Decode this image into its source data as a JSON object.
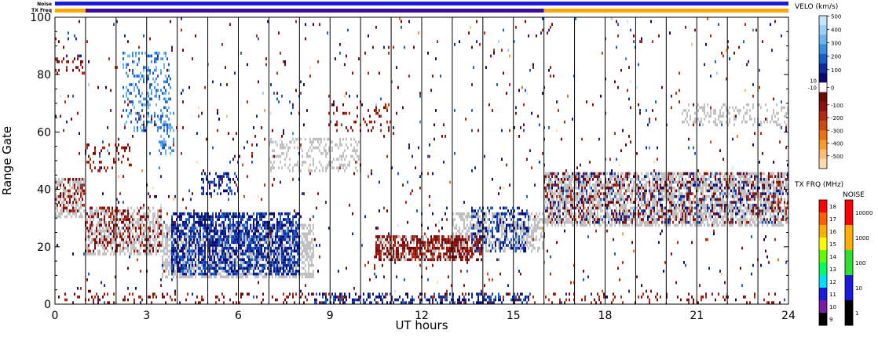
{
  "status_bars": {
    "noise_label": "Noise",
    "txfreq_label": "TX Freq",
    "noise_color": "#1a1adc",
    "txfreq_segments": [
      {
        "from": 0,
        "to": 1,
        "color": "#ffa500"
      },
      {
        "from": 1,
        "to": 16,
        "color": "#3a0aa0"
      },
      {
        "from": 16,
        "to": 24,
        "color": "#ffa500"
      }
    ]
  },
  "chart_data": {
    "type": "scatter",
    "title": "",
    "xlabel": "UT hours",
    "ylabel": "Range Gate",
    "xlim": [
      0,
      24
    ],
    "ylim": [
      0,
      100
    ],
    "x_ticks": [
      0,
      3,
      6,
      9,
      12,
      15,
      18,
      21,
      24
    ],
    "y_ticks": [
      0,
      20,
      40,
      60,
      80,
      100
    ],
    "scan_lines": [
      1,
      2,
      3,
      4,
      5,
      6,
      7,
      8,
      9,
      10,
      11,
      12,
      13,
      14,
      15,
      16,
      17,
      18,
      19,
      20,
      21,
      22,
      23
    ],
    "grid": false,
    "ground_scatter_color": "#c0c0c0",
    "regions": [
      {
        "name": "gs",
        "x": [
          0,
          1.0
        ],
        "y": [
          30,
          44
        ],
        "density": 0.55,
        "kind": "gs"
      },
      {
        "name": "gs",
        "x": [
          1.0,
          3.5
        ],
        "y": [
          17,
          34
        ],
        "density": 0.5,
        "kind": "gs"
      },
      {
        "name": "gs",
        "x": [
          3.5,
          8.5
        ],
        "y": [
          9,
          28
        ],
        "density": 0.6,
        "kind": "gs"
      },
      {
        "name": "gs",
        "x": [
          10.5,
          13.5
        ],
        "y": [
          15,
          24
        ],
        "density": 0.4,
        "kind": "gs"
      },
      {
        "name": "gs",
        "x": [
          13.0,
          16.0
        ],
        "y": [
          18,
          32
        ],
        "density": 0.5,
        "kind": "gs"
      },
      {
        "name": "gs",
        "x": [
          16.0,
          24.0
        ],
        "y": [
          27,
          46
        ],
        "density": 0.6,
        "kind": "gs"
      },
      {
        "name": "gs",
        "x": [
          20.5,
          24.0
        ],
        "y": [
          62,
          70
        ],
        "density": 0.25,
        "kind": "gs"
      },
      {
        "name": "gs",
        "x": [
          7.0,
          10.0
        ],
        "y": [
          46,
          58
        ],
        "density": 0.25,
        "kind": "gs"
      },
      {
        "name": "neg",
        "x": [
          0,
          1.0
        ],
        "y": [
          32,
          44
        ],
        "density": 0.25,
        "kind": "neg"
      },
      {
        "name": "neg",
        "x": [
          0,
          1.0
        ],
        "y": [
          80,
          86
        ],
        "density": 0.25,
        "kind": "neg"
      },
      {
        "name": "neg",
        "x": [
          1.0,
          3.5
        ],
        "y": [
          18,
          34
        ],
        "density": 0.25,
        "kind": "neg"
      },
      {
        "name": "neg",
        "x": [
          10.5,
          14.0
        ],
        "y": [
          15,
          24
        ],
        "density": 0.55,
        "kind": "neg"
      },
      {
        "name": "neg",
        "x": [
          16.0,
          24.0
        ],
        "y": [
          28,
          46
        ],
        "density": 0.2,
        "kind": "neg"
      },
      {
        "name": "neg",
        "x": [
          1.0,
          2.5
        ],
        "y": [
          46,
          56
        ],
        "density": 0.15,
        "kind": "neg"
      },
      {
        "name": "neg",
        "x": [
          9.0,
          11.0
        ],
        "y": [
          60,
          70
        ],
        "density": 0.12,
        "kind": "neg"
      },
      {
        "name": "neg",
        "x": [
          0,
          24
        ],
        "y": [
          0,
          4
        ],
        "density": 0.12,
        "kind": "neg"
      },
      {
        "name": "pos",
        "x": [
          3.8,
          8.0
        ],
        "y": [
          10,
          32
        ],
        "density": 0.6,
        "kind": "pos"
      },
      {
        "name": "pos",
        "x": [
          4.8,
          6.0
        ],
        "y": [
          38,
          46
        ],
        "density": 0.3,
        "kind": "pos"
      },
      {
        "name": "pos",
        "x": [
          13.6,
          15.5
        ],
        "y": [
          18,
          34
        ],
        "density": 0.35,
        "kind": "pos"
      },
      {
        "name": "pos",
        "x": [
          8.5,
          15.5
        ],
        "y": [
          0,
          4
        ],
        "density": 0.35,
        "kind": "pos"
      },
      {
        "name": "pos",
        "x": [
          16.0,
          24.0
        ],
        "y": [
          28,
          46
        ],
        "density": 0.12,
        "kind": "pos"
      },
      {
        "name": "pos",
        "x": [
          2.2,
          3.8
        ],
        "y": [
          60,
          88
        ],
        "density": 0.25,
        "kind": "pos2"
      },
      {
        "name": "pos",
        "x": [
          3.4,
          3.9
        ],
        "y": [
          52,
          68
        ],
        "density": 0.3,
        "kind": "pos2"
      }
    ],
    "noise_density": 0.02,
    "velocity_scale": {
      "title": "VELO (km/s)",
      "ticks": [
        "500",
        "400",
        "300",
        "200",
        "100",
        "0",
        "-100",
        "-200",
        "-300",
        "-400",
        "-500"
      ],
      "side_ticks": [
        "10",
        "-10"
      ],
      "colors": [
        "#c8e6ff",
        "#9cd0f8",
        "#6fb4ee",
        "#3c8fe0",
        "#1a5cc8",
        "#102a9c",
        "#0a0a70",
        "#ffffff",
        "#6e0a0a",
        "#8e1010",
        "#b02a10",
        "#d04a10",
        "#ef7010",
        "#ff9a30",
        "#ffbe78",
        "#ffdcb0"
      ]
    },
    "txfreq_scale": {
      "title": "TX FRQ (MHz)",
      "ticks": [
        "18",
        "17",
        "16",
        "15",
        "14",
        "13",
        "12",
        "11",
        "10",
        "9"
      ],
      "colors": [
        "#ff0000",
        "#ff6000",
        "#ffb000",
        "#ffff00",
        "#60ff00",
        "#00ff60",
        "#00e0ff",
        "#1a1adc",
        "#7a1aa0",
        "#000000"
      ]
    },
    "noise_scale": {
      "title": "NOISE",
      "ticks": [
        "10000",
        "1000",
        "100",
        "10",
        "1"
      ],
      "colors": [
        "#ff0000",
        "#ffb000",
        "#30e030",
        "#1a1adc",
        "#000000"
      ]
    }
  }
}
